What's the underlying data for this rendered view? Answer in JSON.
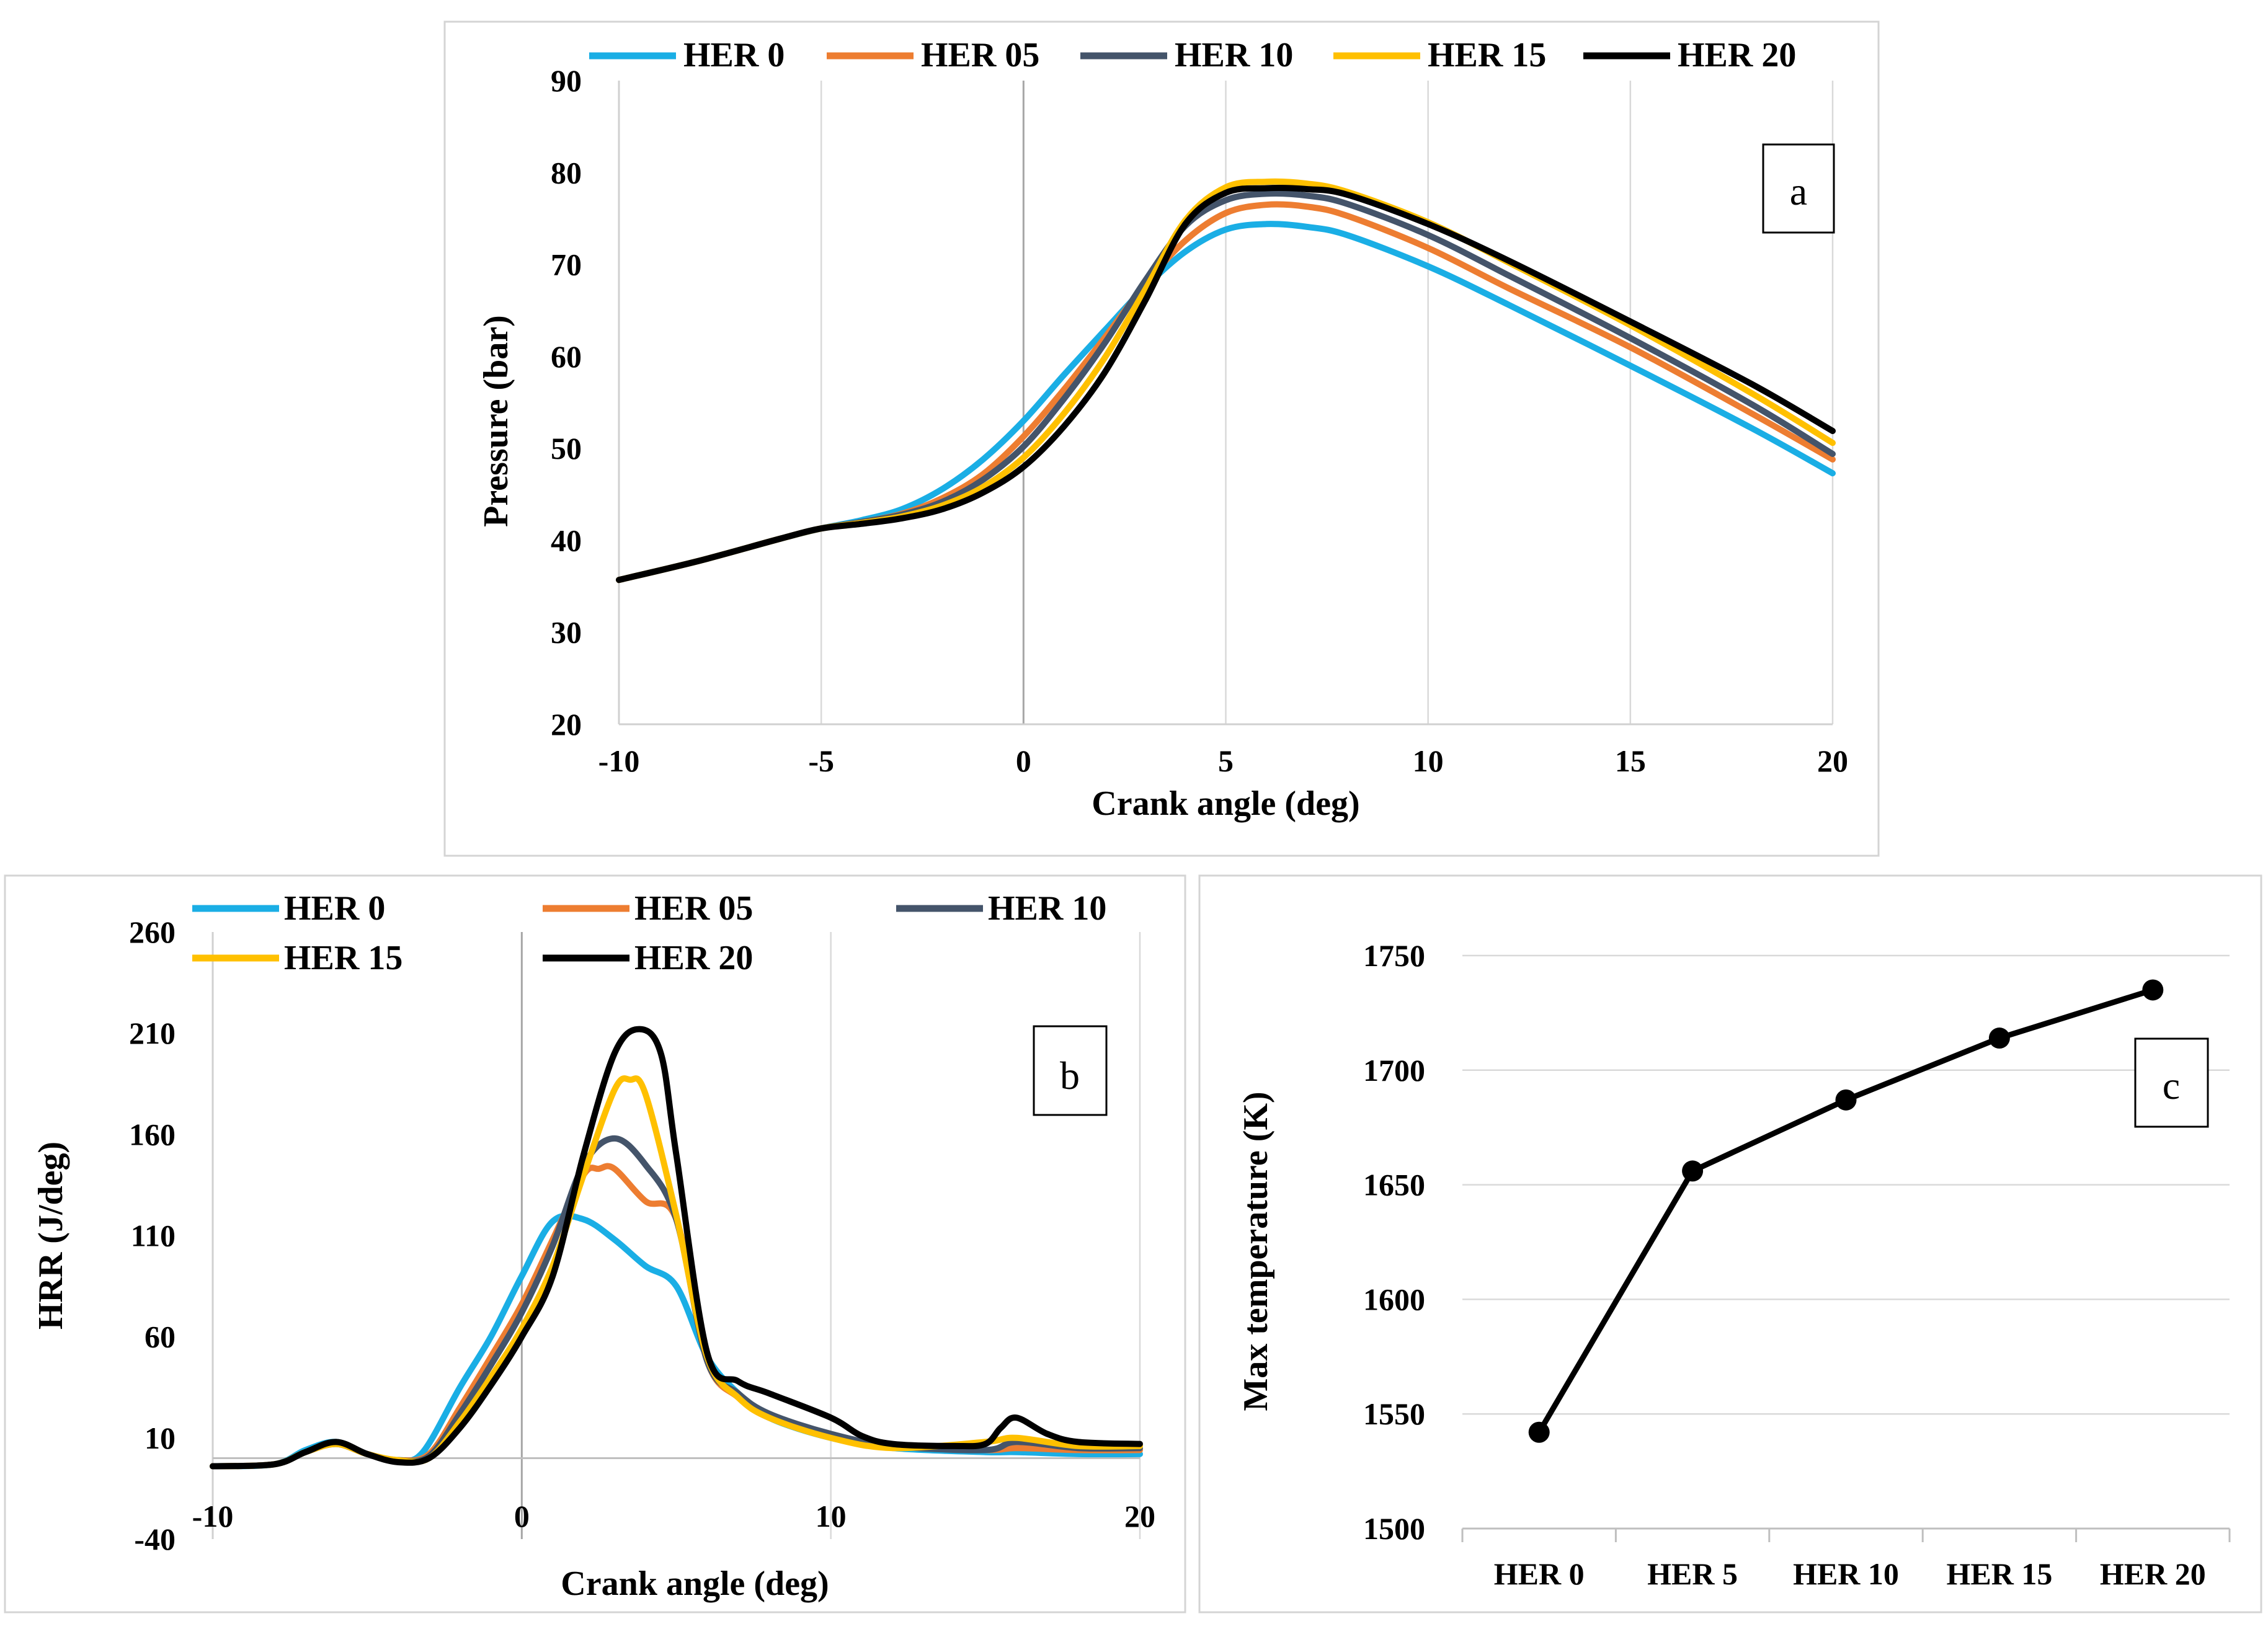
{
  "chart_data": [
    {
      "panel": "a",
      "type": "line",
      "xlabel": "Crank angle (deg)",
      "ylabel": "Pressure (bar)",
      "xlim": [
        -10,
        20
      ],
      "ylim": [
        20,
        90
      ],
      "xticks": [
        -10,
        -5,
        0,
        5,
        10,
        15,
        20
      ],
      "yticks": [
        20,
        30,
        40,
        50,
        60,
        70,
        80,
        90
      ],
      "grid": "vertical",
      "legend_position": "top",
      "series": [
        {
          "name": "HER 0",
          "color": "#1aaee5",
          "x": [
            -10,
            -8,
            -6,
            -5,
            -4,
            -3,
            -2,
            -1,
            0,
            1,
            2,
            3,
            4,
            5,
            6,
            7,
            8,
            10,
            12,
            15,
            18,
            20
          ],
          "y": [
            35.7,
            37.8,
            40.2,
            41.3,
            42.2,
            43.4,
            45.6,
            48.8,
            53.0,
            58.0,
            62.8,
            67.5,
            71.4,
            73.8,
            74.4,
            74.1,
            73.2,
            69.8,
            65.6,
            59.0,
            52.2,
            47.3
          ]
        },
        {
          "name": "HER 05",
          "color": "#ed7d31",
          "x": [
            -10,
            -8,
            -6,
            -5,
            -4,
            -3,
            -2,
            -1,
            0,
            1,
            2,
            3,
            4,
            5,
            6,
            7,
            8,
            10,
            12,
            15,
            18,
            20
          ],
          "y": [
            35.7,
            37.8,
            40.2,
            41.3,
            42.0,
            42.9,
            44.6,
            47.2,
            51.3,
            56.4,
            62.0,
            67.8,
            72.6,
            75.6,
            76.5,
            76.3,
            75.3,
            71.8,
            67.4,
            61.0,
            53.8,
            48.8
          ]
        },
        {
          "name": "HER 10",
          "color": "#44546a",
          "x": [
            -10,
            -8,
            -6,
            -5,
            -4,
            -3,
            -2,
            -1,
            0,
            1,
            2,
            3,
            4,
            5,
            6,
            7,
            8,
            10,
            12,
            15,
            18,
            20
          ],
          "y": [
            35.7,
            37.8,
            40.2,
            41.3,
            42.0,
            42.8,
            44.2,
            46.6,
            50.2,
            55.4,
            61.4,
            68.2,
            74.2,
            77.0,
            77.7,
            77.5,
            76.6,
            73.2,
            68.8,
            62.0,
            54.8,
            49.4
          ]
        },
        {
          "name": "HER 15",
          "color": "#ffc000",
          "x": [
            -10,
            -8,
            -6,
            -5,
            -4,
            -3,
            -2,
            -1,
            0,
            1,
            2,
            3,
            4,
            5,
            6,
            7,
            8,
            10,
            12,
            15,
            18,
            20
          ],
          "y": [
            35.7,
            37.8,
            40.2,
            41.3,
            41.9,
            42.6,
            43.8,
            45.8,
            49.0,
            53.8,
            59.8,
            67.2,
            74.8,
            78.4,
            79.0,
            78.8,
            77.9,
            74.6,
            70.2,
            63.4,
            56.0,
            50.6
          ]
        },
        {
          "name": "HER 20",
          "color": "#000000",
          "x": [
            -10,
            -8,
            -6,
            -5,
            -4,
            -3,
            -2,
            -1,
            0,
            1,
            2,
            3,
            4,
            5,
            6,
            7,
            8,
            10,
            12,
            15,
            18,
            20
          ],
          "y": [
            35.7,
            37.8,
            40.2,
            41.3,
            41.8,
            42.4,
            43.4,
            45.2,
            48.0,
            52.4,
            58.2,
            66.0,
            74.4,
            77.8,
            78.3,
            78.2,
            77.6,
            74.4,
            70.4,
            63.8,
            57.0,
            51.9
          ]
        }
      ]
    },
    {
      "panel": "b",
      "type": "line",
      "xlabel": "Crank angle (deg)",
      "ylabel": "HRR (J/deg)",
      "xlim": [
        -10,
        20
      ],
      "ylim": [
        -40,
        260
      ],
      "xticks": [
        -10,
        0,
        10,
        20
      ],
      "yticks": [
        -40,
        10,
        60,
        110,
        160,
        210,
        260
      ],
      "grid": "vertical",
      "legend_position": "top",
      "series": [
        {
          "name": "HER 0",
          "color": "#1aaee5",
          "x": [
            -10,
            -8,
            -7,
            -6,
            -5,
            -4,
            -3.2,
            -2,
            -1,
            0,
            1,
            2,
            3,
            4,
            5,
            6,
            7,
            8,
            10,
            12,
            15,
            16,
            18,
            20
          ],
          "y": [
            -4,
            -3,
            4,
            8,
            2,
            -1,
            3,
            35,
            60,
            90,
            117,
            118,
            108,
            95,
            85,
            50,
            32,
            20,
            10,
            5,
            3,
            3,
            2,
            2
          ]
        },
        {
          "name": "HER 05",
          "color": "#ed7d31",
          "x": [
            -10,
            -8,
            -7,
            -6,
            -5,
            -4,
            -3,
            -2,
            -1,
            0,
            1,
            2,
            2.5,
            3,
            4,
            5,
            6,
            7,
            8,
            10,
            12,
            15,
            16,
            18,
            20
          ],
          "y": [
            -4,
            -3,
            3,
            7,
            2,
            -1,
            2,
            25,
            50,
            76,
            108,
            140,
            143,
            143,
            127,
            118,
            48,
            30,
            20,
            11,
            6,
            4,
            5,
            4,
            4
          ]
        },
        {
          "name": "HER 10",
          "color": "#44546a",
          "x": [
            -10,
            -8,
            -7,
            -6,
            -5,
            -4,
            -3,
            -2,
            -1,
            0,
            1,
            2,
            3,
            4,
            5,
            6,
            7,
            8,
            10,
            12,
            15,
            16,
            18,
            20
          ],
          "y": [
            -4,
            -3,
            3,
            7,
            2,
            -1,
            1,
            22,
            46,
            72,
            105,
            145,
            158,
            145,
            118,
            48,
            32,
            22,
            12,
            6,
            4,
            8,
            5,
            5
          ]
        },
        {
          "name": "HER 15",
          "color": "#ffc000",
          "x": [
            -10,
            -8,
            -7,
            -6,
            -5,
            -4,
            -3,
            -2,
            -1,
            0,
            1,
            2,
            3,
            3.5,
            4,
            5,
            6,
            7,
            8,
            10,
            12,
            15,
            16,
            18,
            20
          ],
          "y": [
            -4,
            -3,
            3,
            7,
            2,
            -1,
            0,
            18,
            40,
            64,
            95,
            140,
            182,
            187,
            180,
            120,
            50,
            30,
            20,
            10,
            5,
            8,
            10,
            6,
            6
          ]
        },
        {
          "name": "HER 20",
          "color": "#000000",
          "x": [
            -10,
            -8,
            -7,
            -6,
            -5,
            -4,
            -3,
            -2,
            -1,
            0,
            1,
            2,
            3,
            3.8,
            4.5,
            5,
            6,
            7,
            8,
            10,
            11,
            12,
            14,
            15,
            15.5,
            16,
            17,
            18,
            20
          ],
          "y": [
            -4,
            -3,
            3,
            8,
            2,
            -2,
            0,
            15,
            36,
            60,
            90,
            150,
            200,
            212,
            200,
            150,
            52,
            38,
            32,
            20,
            11,
            7,
            6,
            7,
            15,
            20,
            12,
            8,
            7
          ]
        }
      ]
    },
    {
      "panel": "c",
      "type": "line",
      "xlabel": "",
      "ylabel": "Max temperature (K)",
      "categories": [
        "HER 0",
        "HER 5",
        "HER 10",
        "HER 15",
        "HER 20"
      ],
      "ylim": [
        1500,
        1750
      ],
      "yticks": [
        1500,
        1550,
        1600,
        1650,
        1700,
        1750
      ],
      "grid": "horizontal",
      "series": [
        {
          "color": "#000000",
          "values": [
            1542,
            1656,
            1687,
            1714,
            1735
          ]
        }
      ]
    }
  ],
  "panel_labels": [
    "a",
    "b",
    "c"
  ]
}
